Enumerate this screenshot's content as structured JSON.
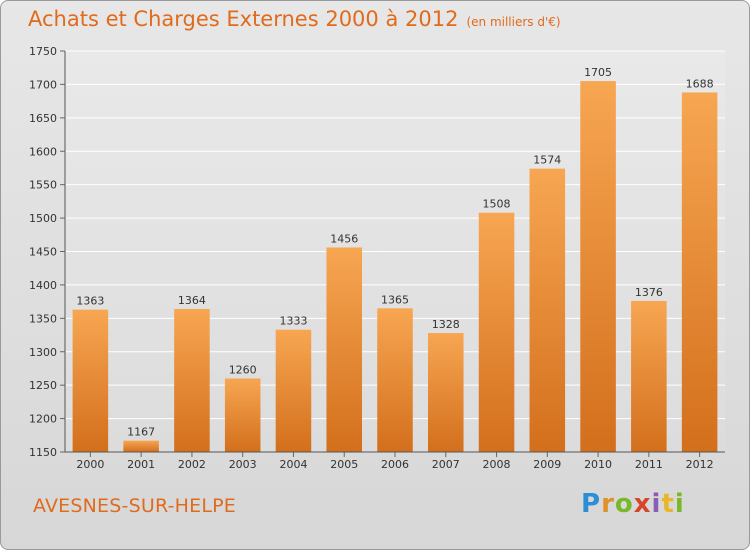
{
  "header": {
    "title": "Achats et Charges Externes 2000 à 2012",
    "unit": "(en milliers d'€)"
  },
  "footer": {
    "place": "AVESNES-SUR-HELPE",
    "brand": "Proxiti"
  },
  "colors": {
    "accent": "#e06b1c",
    "bar_light": "#f6a24e",
    "bar_dark": "#d9731f"
  },
  "chart_data": {
    "type": "bar",
    "title": "Achats et Charges Externes 2000 à 2012",
    "subtitle": "(en milliers d'€)",
    "xlabel": "",
    "ylabel": "",
    "categories": [
      "2000",
      "2001",
      "2002",
      "2003",
      "2004",
      "2005",
      "2006",
      "2007",
      "2008",
      "2009",
      "2010",
      "2011",
      "2012"
    ],
    "values": [
      1363,
      1167,
      1364,
      1260,
      1333,
      1456,
      1365,
      1328,
      1508,
      1574,
      1705,
      1376,
      1688
    ],
    "ylim": [
      1150,
      1750
    ],
    "yticks": [
      1150,
      1200,
      1250,
      1300,
      1350,
      1400,
      1450,
      1500,
      1550,
      1600,
      1650,
      1700,
      1750
    ],
    "grid": true,
    "legend": "none"
  }
}
